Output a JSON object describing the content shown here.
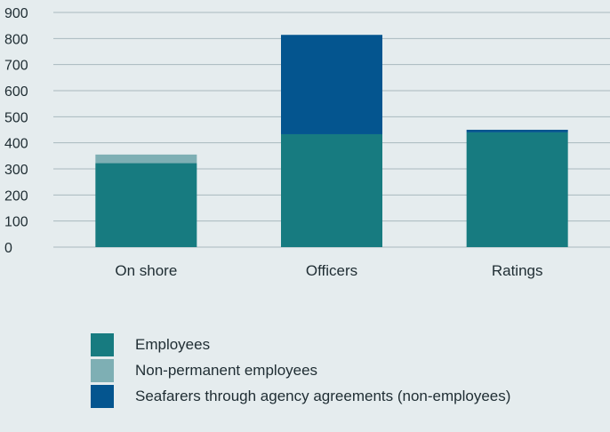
{
  "chart_data": {
    "type": "bar",
    "stacked": true,
    "categories": [
      "On shore",
      "Officers",
      "Ratings"
    ],
    "series": [
      {
        "name": "Employees",
        "values": [
          322,
          433,
          440
        ],
        "color": "#177b80"
      },
      {
        "name": "Non-permanent employees",
        "values": [
          33,
          0,
          0
        ],
        "color": "#7eafb4"
      },
      {
        "name": "Seafarers through agency agreements (non-employees)",
        "values": [
          0,
          381,
          10
        ],
        "color": "#04558f"
      }
    ],
    "ylim": [
      0,
      900
    ],
    "yticks": [
      0,
      100,
      200,
      300,
      400,
      500,
      600,
      700,
      800,
      900
    ],
    "grid": true,
    "legend_position": "bottom"
  }
}
